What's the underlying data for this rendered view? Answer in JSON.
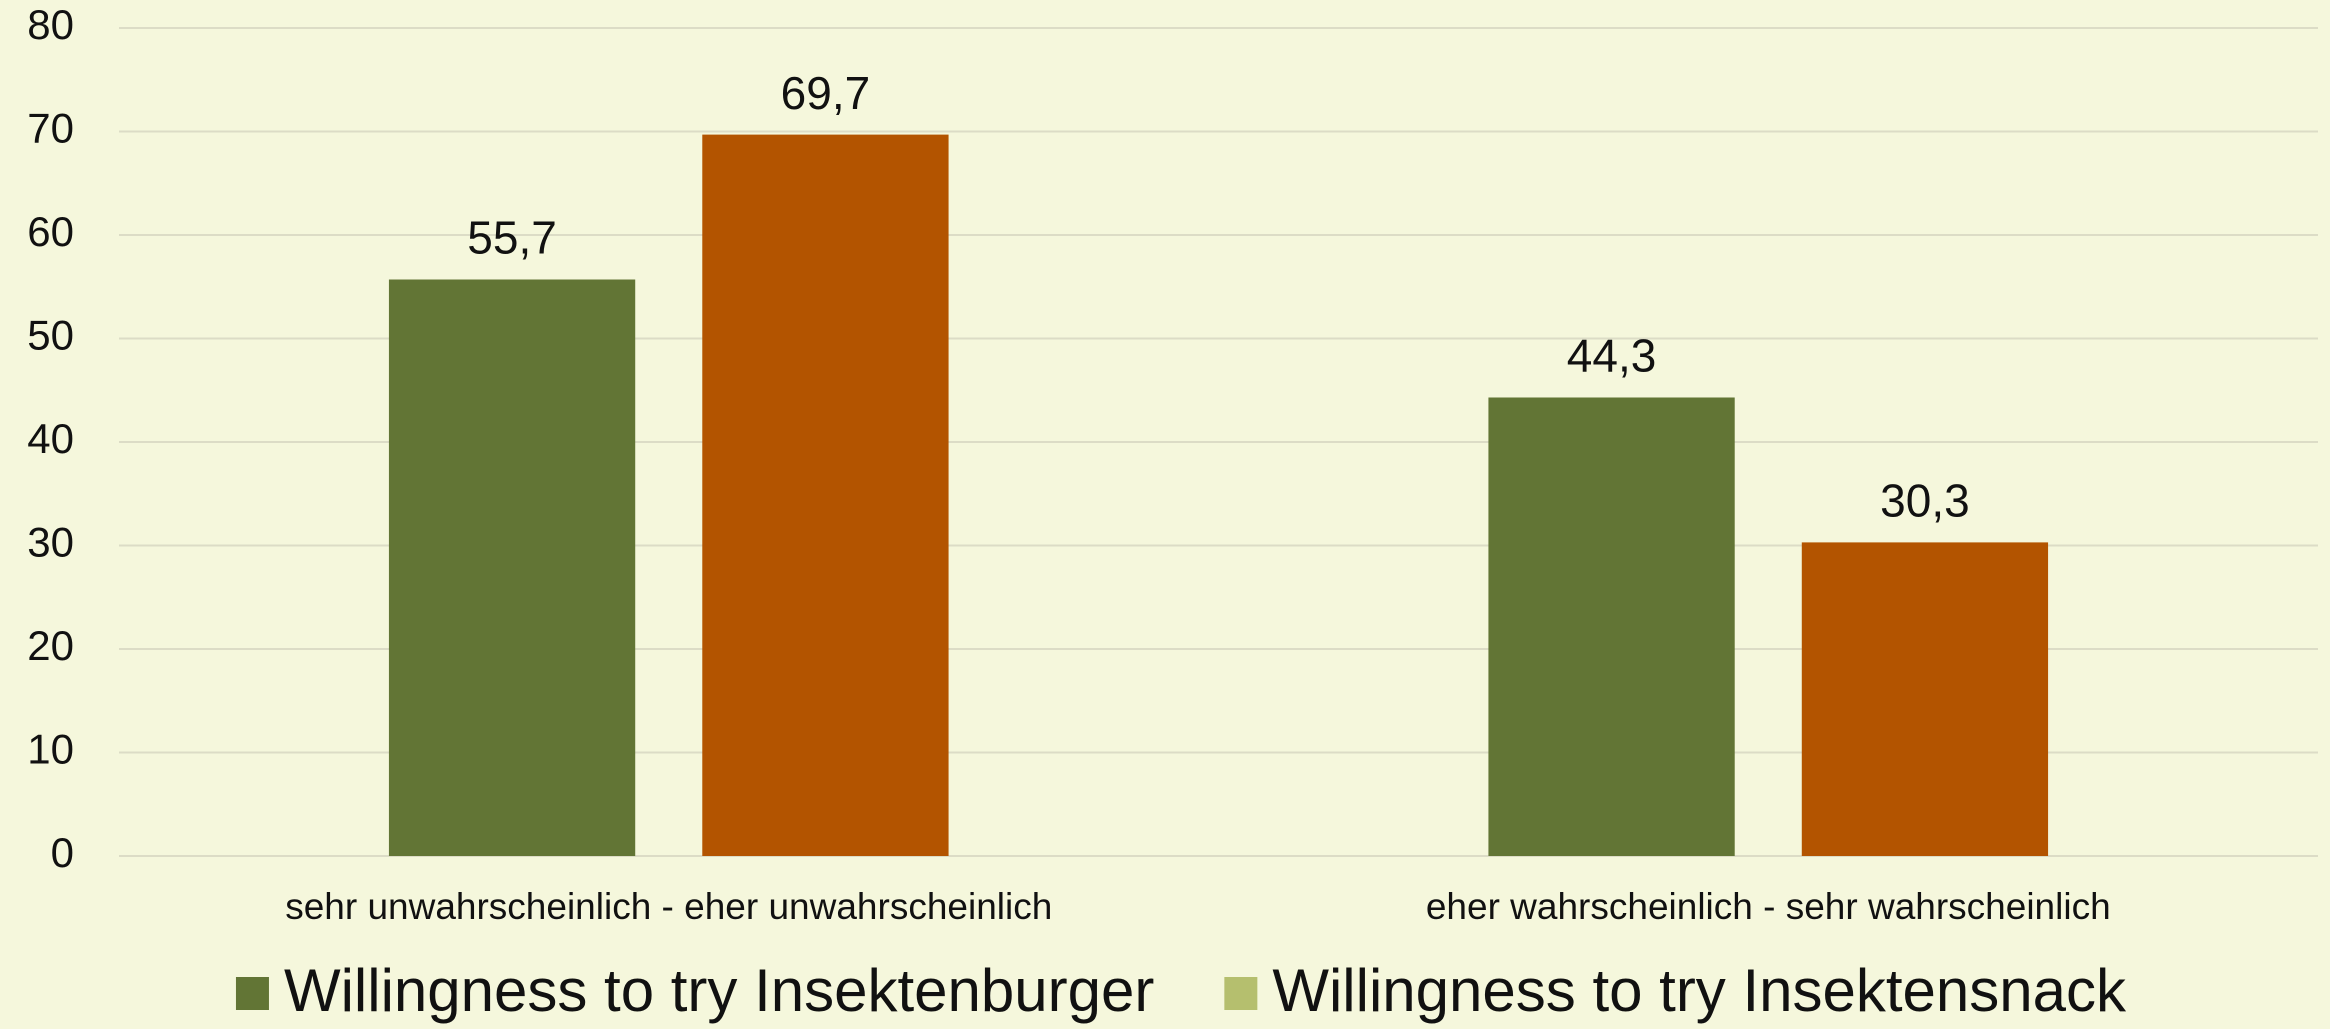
{
  "chart_data": {
    "type": "bar",
    "categories": [
      "sehr unwahrscheinlich - eher unwahrscheinlich",
      "eher wahrscheinlich - sehr wahrscheinlich"
    ],
    "series": [
      {
        "name": "Willingness to try Insektenburger",
        "color": "#627535",
        "legend_color": "#627535",
        "values": [
          55.7,
          44.3
        ],
        "value_labels": [
          "55,7",
          "44,3"
        ]
      },
      {
        "name": "Willingness to try Insektensnack",
        "color": "#b35400",
        "legend_color": "#b5bf6e",
        "values": [
          69.7,
          30.3
        ],
        "value_labels": [
          "69,7",
          "30,3"
        ]
      }
    ],
    "ylim": [
      0,
      80
    ],
    "yticks": [
      0,
      10,
      20,
      30,
      40,
      50,
      60,
      70,
      80
    ],
    "grid": true,
    "legend": "bottom"
  }
}
